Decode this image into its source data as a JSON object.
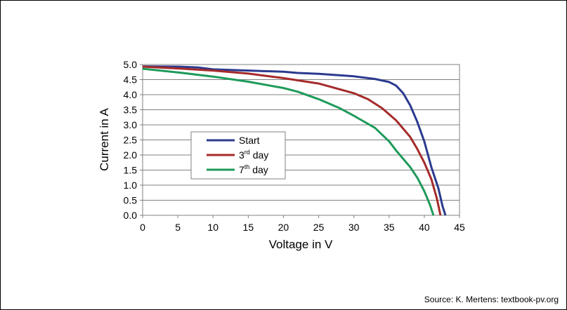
{
  "chart_data": {
    "type": "line",
    "xlabel": "Voltage in V",
    "ylabel": "Current in A",
    "xlim": [
      0,
      45
    ],
    "ylim": [
      0,
      5
    ],
    "x_ticks": [
      "0",
      "5",
      "10",
      "15",
      "20",
      "25",
      "30",
      "35",
      "40",
      "45"
    ],
    "y_ticks": [
      "0.0",
      "0.5",
      "1.0",
      "1.5",
      "2.0",
      "2.5",
      "3.0",
      "3.5",
      "4.0",
      "4.5",
      "5.0"
    ],
    "grid": "horizontal",
    "legend_position": "middle-left",
    "series": [
      {
        "name": "Start",
        "color": "#2b3a8f",
        "points": [
          [
            0,
            4.94
          ],
          [
            5,
            4.93
          ],
          [
            8,
            4.9
          ],
          [
            10,
            4.84
          ],
          [
            15,
            4.8
          ],
          [
            20,
            4.76
          ],
          [
            22,
            4.72
          ],
          [
            25,
            4.69
          ],
          [
            30,
            4.61
          ],
          [
            33,
            4.52
          ],
          [
            35,
            4.42
          ],
          [
            36,
            4.3
          ],
          [
            37,
            4.05
          ],
          [
            38,
            3.65
          ],
          [
            39,
            3.1
          ],
          [
            40,
            2.45
          ],
          [
            41,
            1.6
          ],
          [
            42,
            0.9
          ],
          [
            42.6,
            0.3
          ],
          [
            43,
            0.0
          ]
        ]
      },
      {
        "name": "3rd day",
        "name_base": "3",
        "name_sup": "rd",
        "name_rest": " day",
        "color": "#a52a2a",
        "points": [
          [
            0,
            4.93
          ],
          [
            5,
            4.87
          ],
          [
            10,
            4.8
          ],
          [
            15,
            4.7
          ],
          [
            20,
            4.55
          ],
          [
            25,
            4.37
          ],
          [
            30,
            4.05
          ],
          [
            32,
            3.85
          ],
          [
            34,
            3.55
          ],
          [
            36,
            3.15
          ],
          [
            38,
            2.6
          ],
          [
            39,
            2.2
          ],
          [
            40,
            1.75
          ],
          [
            41,
            1.2
          ],
          [
            41.8,
            0.55
          ],
          [
            42.3,
            0.0
          ]
        ]
      },
      {
        "name": "7th day",
        "name_base": "7",
        "name_sup": "th",
        "name_rest": " day",
        "color": "#1e9a5a",
        "points": [
          [
            0,
            4.86
          ],
          [
            5,
            4.74
          ],
          [
            10,
            4.6
          ],
          [
            15,
            4.43
          ],
          [
            20,
            4.22
          ],
          [
            22,
            4.1
          ],
          [
            25,
            3.85
          ],
          [
            28,
            3.55
          ],
          [
            30,
            3.3
          ],
          [
            33,
            2.9
          ],
          [
            35,
            2.45
          ],
          [
            36,
            2.15
          ],
          [
            38,
            1.6
          ],
          [
            39,
            1.25
          ],
          [
            40,
            0.8
          ],
          [
            40.8,
            0.35
          ],
          [
            41.3,
            0.0
          ]
        ]
      }
    ]
  },
  "source": "Source: K. Mertens: textbook-pv.org"
}
